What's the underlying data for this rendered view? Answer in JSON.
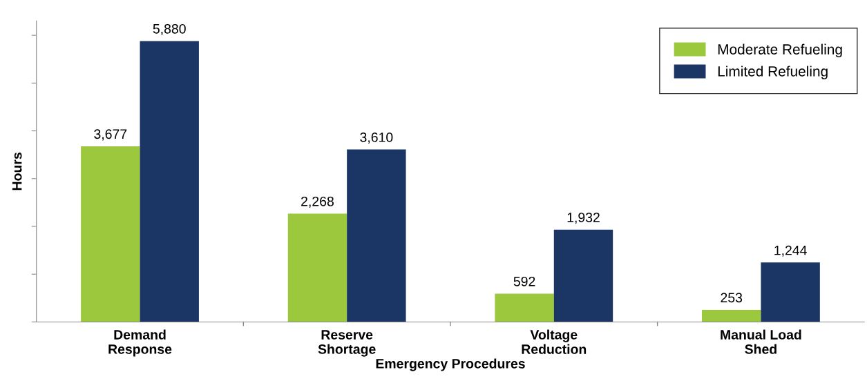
{
  "chart_data": {
    "type": "bar",
    "xlabel": "Emergency Procedures",
    "ylabel": "Hours",
    "categories": [
      "Demand\nResponse",
      "Reserve\nShortage",
      "Voltage\nReduction",
      "Manual Load\nShed"
    ],
    "series": [
      {
        "name": "Moderate Refueling",
        "color": "#9bc83c",
        "values": [
          3677,
          2268,
          592,
          253
        ],
        "value_labels": [
          "3,677",
          "2,268",
          "592",
          "253"
        ]
      },
      {
        "name": "Limited Refueling",
        "color": "#1b3564",
        "values": [
          5880,
          3610,
          1932,
          1244
        ],
        "value_labels": [
          "5,880",
          "3,610",
          "1,932",
          "1,244"
        ]
      }
    ],
    "ylim": [
      0,
      6300
    ],
    "yticks": [
      {
        "value": 0,
        "label": null
      },
      {
        "value": 1000,
        "label": null
      },
      {
        "value": 2000,
        "label": null
      },
      {
        "value": 3000,
        "label": null
      },
      {
        "value": 4000,
        "label": null
      },
      {
        "value": 5000,
        "label": null
      },
      {
        "value": 6000,
        "label": null
      }
    ],
    "legend": "top right",
    "grid": false
  }
}
